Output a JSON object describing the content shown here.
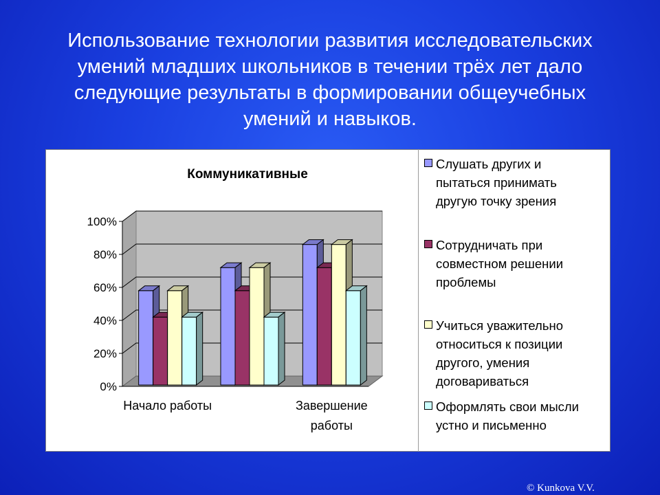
{
  "slide": {
    "title_lines": [
      "Использование технологии развития исследовательских",
      "умений младших школьников в течении трёх лет дало",
      "следующие результаты в формировании общеучебных",
      "умений и навыков."
    ],
    "copyright": "© Kunkova V.V."
  },
  "chart_data": {
    "type": "bar",
    "title": "Коммуникативные",
    "categories": [
      "Начало работы",
      "",
      "Завершение работы"
    ],
    "category_label_lines": [
      [
        "Начало работы"
      ],
      [],
      [
        "Завершение",
        "работы"
      ]
    ],
    "series": [
      {
        "name": "Слушать других и пытаться принимать другую точку зрения",
        "values": [
          58,
          72,
          86
        ],
        "color": "#9999ff"
      },
      {
        "name": "Сотрудничать при совместном решении проблемы",
        "values": [
          42,
          58,
          72
        ],
        "color": "#993366"
      },
      {
        "name": "Учиться уважительно относиться к позиции другого, умения договариваться",
        "values": [
          58,
          72,
          86
        ],
        "color": "#ffffcc"
      },
      {
        "name": "Оформлять свои мысли устно и письменно",
        "values": [
          42,
          42,
          58
        ],
        "color": "#ccffff"
      }
    ],
    "legend_lines": [
      [
        "Слушать других и",
        "пытаться принимать",
        "другую точку зрения"
      ],
      [
        "Сотрудничать при",
        "совместном решении",
        "проблемы"
      ],
      [
        "Учиться уважительно",
        "относиться к позиции",
        "другого, умения",
        "договариваться"
      ],
      [
        "Оформлять свои мысли",
        "устно и письменно"
      ]
    ],
    "y_ticks": [
      "0%",
      "20%",
      "40%",
      "60%",
      "80%",
      "100%"
    ],
    "ylim": [
      0,
      100
    ],
    "grid": true,
    "legend_position": "right",
    "wall_color": "#c0c0c0"
  }
}
